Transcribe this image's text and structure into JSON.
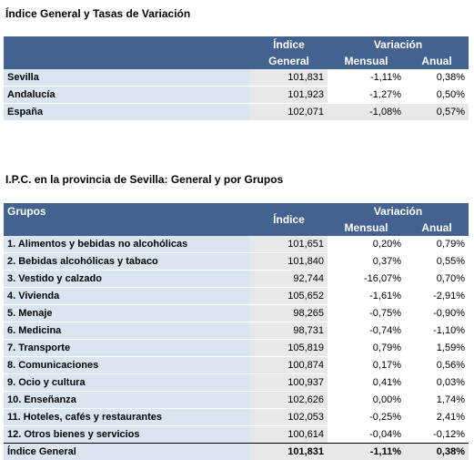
{
  "section1": {
    "title": "Índice General y Tasas de Variación",
    "headers": {
      "indice_line1": "Índice",
      "indice_line2": "General",
      "variacion": "Variación",
      "mensual": "Mensual",
      "anual": "Anual"
    },
    "rows": [
      {
        "name": "Sevilla",
        "indice": "101,831",
        "mensual": "-1,11%",
        "anual": "0,38%"
      },
      {
        "name": "Andalucía",
        "indice": "101,923",
        "mensual": "-1,27%",
        "anual": "0,50%"
      },
      {
        "name": "España",
        "indice": "102,071",
        "mensual": "-1,08%",
        "anual": "0,57%"
      }
    ]
  },
  "section2": {
    "title": "I.P.C. en la provincia de Sevilla: General y por Grupos",
    "headers": {
      "grupos": "Grupos",
      "indice": "Índice",
      "variacion": "Variación",
      "mensual": "Mensual",
      "anual": "Anual"
    },
    "rows": [
      {
        "name": "1. Alimentos y bebidas no alcohólicas",
        "indice": "101,651",
        "mensual": "0,20%",
        "anual": "0,79%"
      },
      {
        "name": "2. Bebidas alcohólicas y tabaco",
        "indice": "101,840",
        "mensual": "0,37%",
        "anual": "0,55%"
      },
      {
        "name": "3. Vestido y calzado",
        "indice": "92,744",
        "mensual": "-16,07%",
        "anual": "0,70%"
      },
      {
        "name": "4. Vivienda",
        "indice": "105,652",
        "mensual": "-1,61%",
        "anual": "-2,91%"
      },
      {
        "name": "5. Menaje",
        "indice": "98,265",
        "mensual": "-0,75%",
        "anual": "-0,90%"
      },
      {
        "name": "6. Medicina",
        "indice": "98,731",
        "mensual": "-0,74%",
        "anual": "-1,10%"
      },
      {
        "name": "7. Transporte",
        "indice": "105,819",
        "mensual": "0,79%",
        "anual": "1,59%"
      },
      {
        "name": "8. Comunicaciones",
        "indice": "100,874",
        "mensual": "0,17%",
        "anual": "0,56%"
      },
      {
        "name": "9. Ocio y cultura",
        "indice": "100,937",
        "mensual": "0,41%",
        "anual": "0,03%"
      },
      {
        "name": "10. Enseñanza",
        "indice": "102,626",
        "mensual": "0,00%",
        "anual": "1,74%"
      },
      {
        "name": "11. Hoteles, cafés y restaurantes",
        "indice": "102,053",
        "mensual": "-0,25%",
        "anual": "2,41%"
      },
      {
        "name": "12. Otros bienes y servicios",
        "indice": "100,614",
        "mensual": "-0,04%",
        "anual": "-0,12%"
      }
    ],
    "total": {
      "name": "Índice General",
      "indice": "101,831",
      "mensual": "-1,11%",
      "anual": "0,38%"
    }
  }
}
